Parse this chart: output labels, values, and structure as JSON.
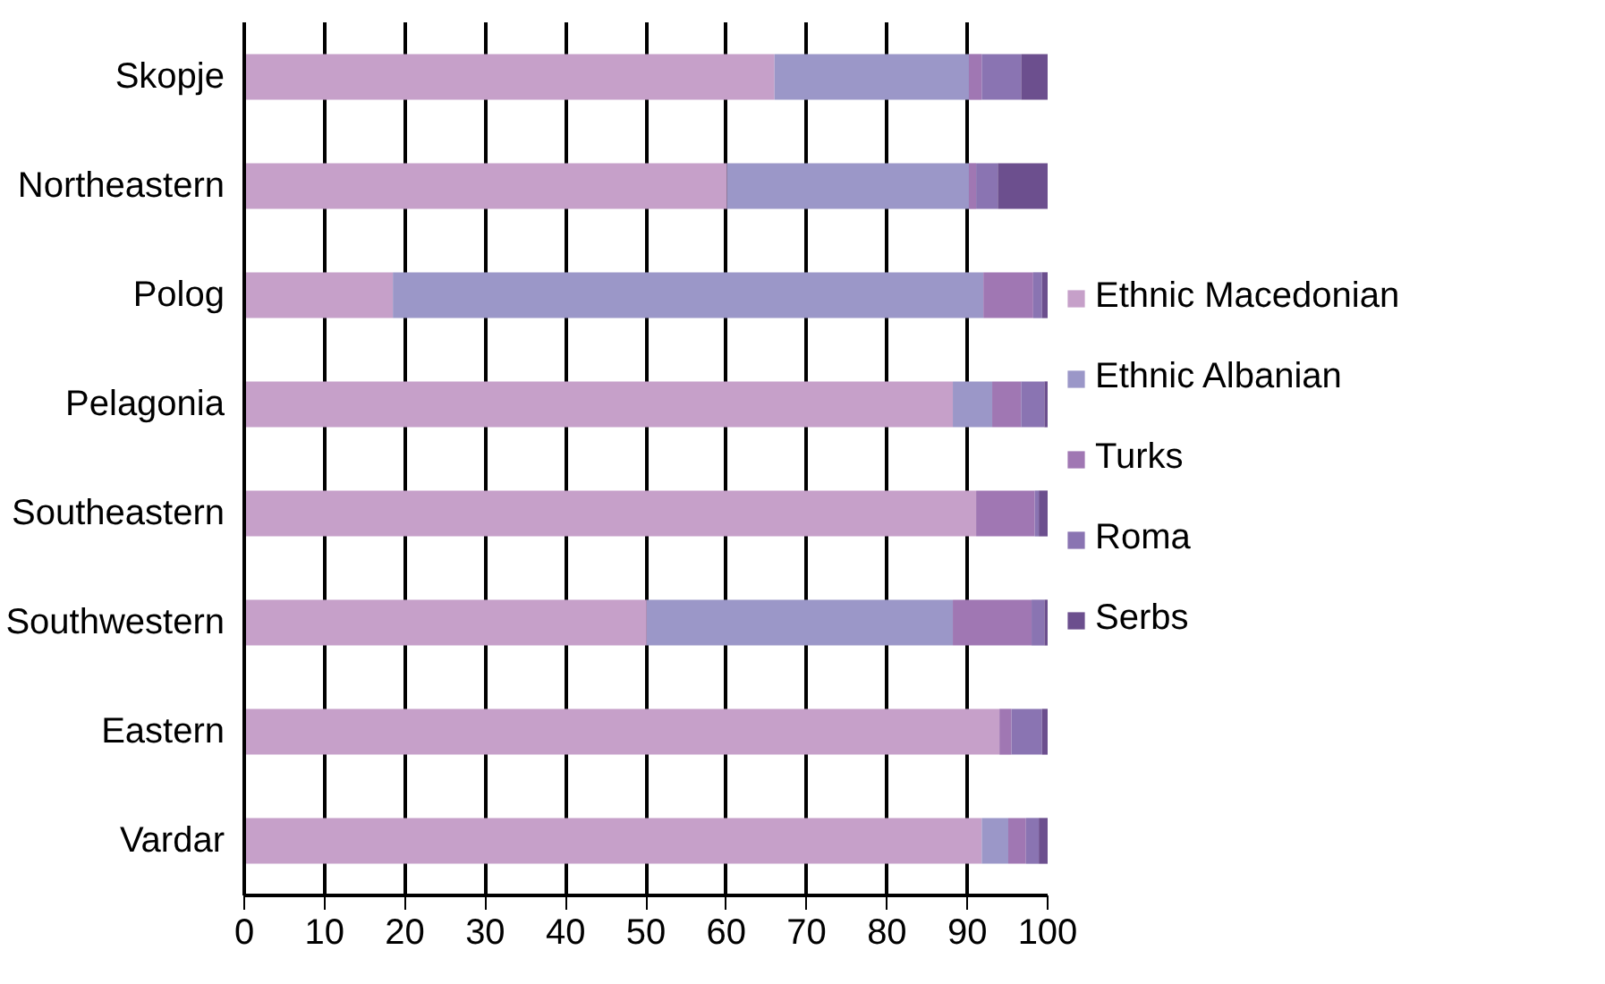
{
  "chart_data": {
    "type": "bar",
    "orientation": "horizontal",
    "stacked": true,
    "categories": [
      "Skopje",
      "Northeastern",
      "Polog",
      "Pelagonia",
      "Southeastern",
      "Southwestern",
      "Eastern",
      "Vardar"
    ],
    "series": [
      {
        "name": "Ethnic Macedonian",
        "color": "#c6a0c9",
        "values": [
          66,
          60.1,
          18.5,
          88.2,
          91.1,
          50.1,
          94,
          91.8
        ]
      },
      {
        "name": "Ethnic Albanian",
        "color": "#9b97c8",
        "values": [
          24.2,
          30.1,
          73.5,
          4.9,
          0,
          38.1,
          0,
          3.3
        ]
      },
      {
        "name": "Turks",
        "color": "#a077b3",
        "values": [
          1.6,
          0.9,
          6.2,
          3.6,
          7.3,
          9.8,
          1.5,
          2.2
        ]
      },
      {
        "name": "Roma",
        "color": "#8a74b2",
        "values": [
          4.9,
          2.7,
          1.1,
          2.9,
          0.5,
          1.6,
          3.8,
          1.6
        ]
      },
      {
        "name": "Serbs",
        "color": "#6c4f8e",
        "values": [
          3.3,
          6.2,
          0.7,
          0.4,
          1.1,
          0.4,
          0.7,
          1.1
        ]
      }
    ],
    "xlim": [
      0,
      100
    ],
    "xticks": [
      0,
      10,
      20,
      30,
      40,
      50,
      60,
      70,
      80,
      90,
      100
    ],
    "grid": "x",
    "legend": "right"
  }
}
